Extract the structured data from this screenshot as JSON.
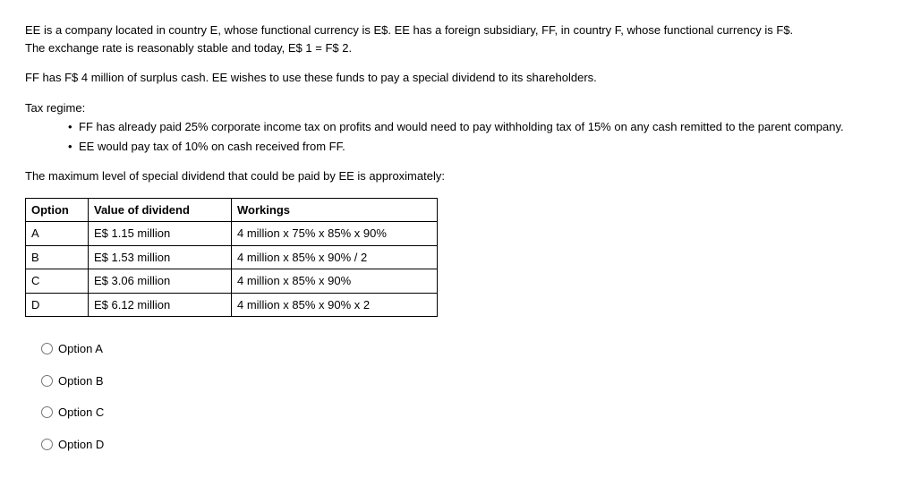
{
  "paragraphs": {
    "p1a": "EE is a company located in country E, whose functional currency is E$. EE has a foreign subsidiary, FF, in country F, whose functional currency is F$.",
    "p1b": "The exchange rate is reasonably stable and today, E$ 1 = F$ 2.",
    "p2": "FF has F$ 4 million of surplus cash. EE wishes to use these funds to pay a special dividend to its shareholders.",
    "tax_heading": "Tax regime:",
    "bullet1": "FF has already paid 25% corporate income tax on profits and would need to pay withholding tax of 15% on any cash remitted to the parent company.",
    "bullet2": "EE would pay tax of 10% on cash received from FF.",
    "p3": "The maximum level of special dividend that could be paid by EE is approximately:"
  },
  "table": {
    "headers": {
      "option": "Option",
      "value": "Value of dividend",
      "workings": "Workings"
    },
    "rows": [
      {
        "option": "A",
        "value": "E$ 1.15 million",
        "workings": "4 million x 75% x 85% x 90%"
      },
      {
        "option": "B",
        "value": "E$ 1.53 million",
        "workings": "4 million x 85% x 90% / 2"
      },
      {
        "option": "C",
        "value": "E$ 3.06 million",
        "workings": "4 million x 85% x 90%"
      },
      {
        "option": "D",
        "value": "E$ 6.12 million",
        "workings": "4 million x 85% x 90% x 2"
      }
    ]
  },
  "answers": [
    {
      "label": "Option A"
    },
    {
      "label": "Option B"
    },
    {
      "label": "Option C"
    },
    {
      "label": "Option D"
    }
  ]
}
